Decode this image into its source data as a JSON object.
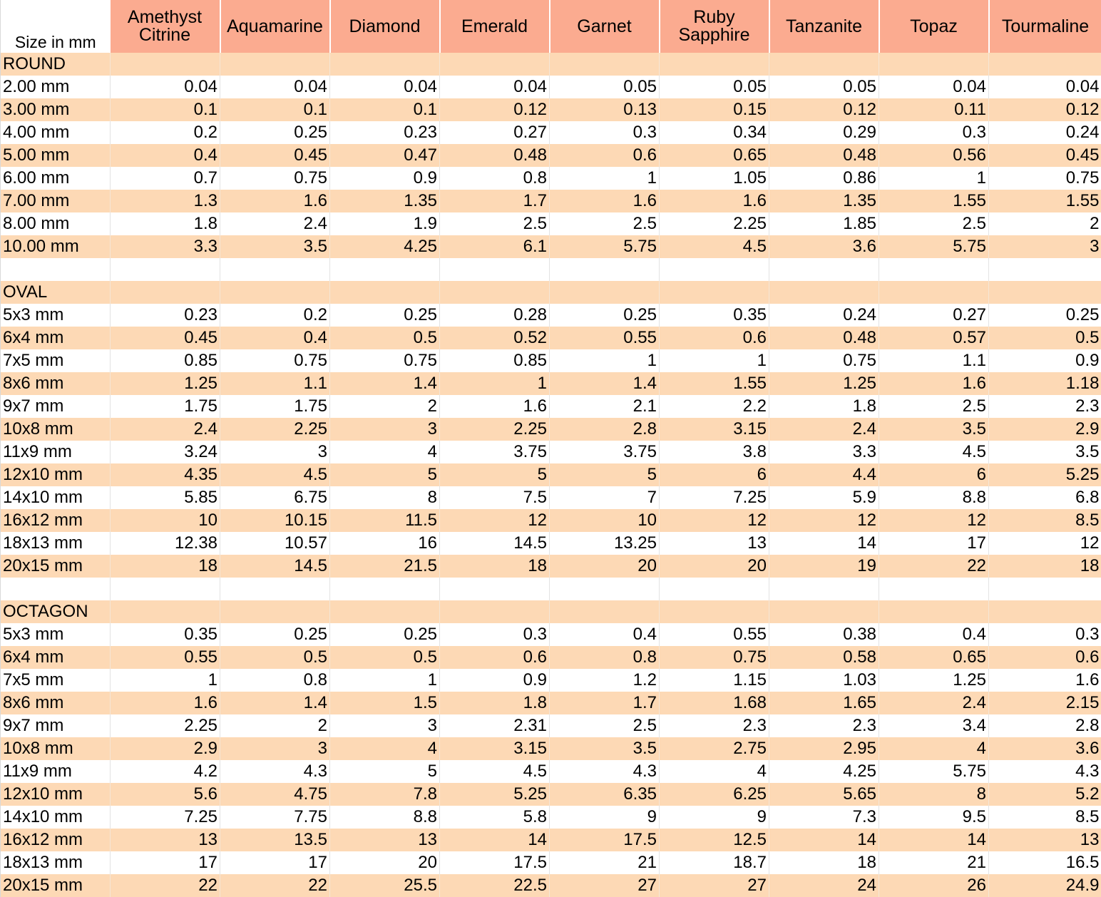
{
  "header": {
    "size_label": "Size in mm",
    "gems": [
      "Amethyst\nCitrine",
      "Aquamarine",
      "Diamond",
      "Emerald",
      "Garnet",
      "Ruby\nSapphire",
      "Tanzanite",
      "Topaz",
      "Tourmaline"
    ]
  },
  "sections": [
    {
      "name": "ROUND",
      "rows": [
        {
          "size": "2.00 mm",
          "values": [
            "0.04",
            "0.04",
            "0.04",
            "0.04",
            "0.05",
            "0.05",
            "0.05",
            "0.04",
            "0.04"
          ]
        },
        {
          "size": "3.00 mm",
          "values": [
            "0.1",
            "0.1",
            "0.1",
            "0.12",
            "0.13",
            "0.15",
            "0.12",
            "0.11",
            "0.12"
          ]
        },
        {
          "size": "4.00 mm",
          "values": [
            "0.2",
            "0.25",
            "0.23",
            "0.27",
            "0.3",
            "0.34",
            "0.29",
            "0.3",
            "0.24"
          ]
        },
        {
          "size": "5.00 mm",
          "values": [
            "0.4",
            "0.45",
            "0.47",
            "0.48",
            "0.6",
            "0.65",
            "0.48",
            "0.56",
            "0.45"
          ]
        },
        {
          "size": "6.00 mm",
          "values": [
            "0.7",
            "0.75",
            "0.9",
            "0.8",
            "1",
            "1.05",
            "0.86",
            "1",
            "0.75"
          ]
        },
        {
          "size": "7.00 mm",
          "values": [
            "1.3",
            "1.6",
            "1.35",
            "1.7",
            "1.6",
            "1.6",
            "1.35",
            "1.55",
            "1.55"
          ]
        },
        {
          "size": "8.00 mm",
          "values": [
            "1.8",
            "2.4",
            "1.9",
            "2.5",
            "2.5",
            "2.25",
            "1.85",
            "2.5",
            "2"
          ]
        },
        {
          "size": "10.00 mm",
          "values": [
            "3.3",
            "3.5",
            "4.25",
            "6.1",
            "5.75",
            "4.5",
            "3.6",
            "5.75",
            "3"
          ]
        }
      ]
    },
    {
      "name": "OVAL",
      "rows": [
        {
          "size": "5x3 mm",
          "values": [
            "0.23",
            "0.2",
            "0.25",
            "0.28",
            "0.25",
            "0.35",
            "0.24",
            "0.27",
            "0.25"
          ]
        },
        {
          "size": "6x4 mm",
          "values": [
            "0.45",
            "0.4",
            "0.5",
            "0.52",
            "0.55",
            "0.6",
            "0.48",
            "0.57",
            "0.5"
          ]
        },
        {
          "size": "7x5 mm",
          "values": [
            "0.85",
            "0.75",
            "0.75",
            "0.85",
            "1",
            "1",
            "0.75",
            "1.1",
            "0.9"
          ]
        },
        {
          "size": "8x6 mm",
          "values": [
            "1.25",
            "1.1",
            "1.4",
            "1",
            "1.4",
            "1.55",
            "1.25",
            "1.6",
            "1.18"
          ]
        },
        {
          "size": "9x7 mm",
          "values": [
            "1.75",
            "1.75",
            "2",
            "1.6",
            "2.1",
            "2.2",
            "1.8",
            "2.5",
            "2.3"
          ]
        },
        {
          "size": "10x8 mm",
          "values": [
            "2.4",
            "2.25",
            "3",
            "2.25",
            "2.8",
            "3.15",
            "2.4",
            "3.5",
            "2.9"
          ]
        },
        {
          "size": "11x9 mm",
          "values": [
            "3.24",
            "3",
            "4",
            "3.75",
            "3.75",
            "3.8",
            "3.3",
            "4.5",
            "3.5"
          ]
        },
        {
          "size": "12x10 mm",
          "values": [
            "4.35",
            "4.5",
            "5",
            "5",
            "5",
            "6",
            "4.4",
            "6",
            "5.25"
          ]
        },
        {
          "size": "14x10 mm",
          "values": [
            "5.85",
            "6.75",
            "8",
            "7.5",
            "7",
            "7.25",
            "5.9",
            "8.8",
            "6.8"
          ]
        },
        {
          "size": "16x12 mm",
          "values": [
            "10",
            "10.15",
            "11.5",
            "12",
            "10",
            "12",
            "12",
            "12",
            "8.5"
          ]
        },
        {
          "size": "18x13 mm",
          "values": [
            "12.38",
            "10.57",
            "16",
            "14.5",
            "13.25",
            "13",
            "14",
            "17",
            "12"
          ]
        },
        {
          "size": "20x15 mm",
          "values": [
            "18",
            "14.5",
            "21.5",
            "18",
            "20",
            "20",
            "19",
            "22",
            "18"
          ]
        }
      ]
    },
    {
      "name": "OCTAGON",
      "rows": [
        {
          "size": "5x3 mm",
          "values": [
            "0.35",
            "0.25",
            "0.25",
            "0.3",
            "0.4",
            "0.55",
            "0.38",
            "0.4",
            "0.3"
          ]
        },
        {
          "size": "6x4 mm",
          "values": [
            "0.55",
            "0.5",
            "0.5",
            "0.6",
            "0.8",
            "0.75",
            "0.58",
            "0.65",
            "0.6"
          ]
        },
        {
          "size": "7x5 mm",
          "values": [
            "1",
            "0.8",
            "1",
            "0.9",
            "1.2",
            "1.15",
            "1.03",
            "1.25",
            "1.6"
          ]
        },
        {
          "size": "8x6 mm",
          "values": [
            "1.6",
            "1.4",
            "1.5",
            "1.8",
            "1.7",
            "1.68",
            "1.65",
            "2.4",
            "2.15"
          ]
        },
        {
          "size": "9x7 mm",
          "values": [
            "2.25",
            "2",
            "3",
            "2.31",
            "2.5",
            "2.3",
            "2.3",
            "3.4",
            "2.8"
          ]
        },
        {
          "size": "10x8 mm",
          "values": [
            "2.9",
            "3",
            "4",
            "3.15",
            "3.5",
            "2.75",
            "2.95",
            "4",
            "3.6"
          ]
        },
        {
          "size": "11x9 mm",
          "values": [
            "4.2",
            "4.3",
            "5",
            "4.5",
            "4.3",
            "4",
            "4.25",
            "5.75",
            "4.3"
          ]
        },
        {
          "size": "12x10 mm",
          "values": [
            "5.6",
            "4.75",
            "7.8",
            "5.25",
            "6.35",
            "6.25",
            "5.65",
            "8",
            "5.2"
          ]
        },
        {
          "size": "14x10 mm",
          "values": [
            "7.25",
            "7.75",
            "8.8",
            "5.8",
            "9",
            "9",
            "7.3",
            "9.5",
            "8.5"
          ]
        },
        {
          "size": "16x12 mm",
          "values": [
            "13",
            "13.5",
            "13",
            "14",
            "17.5",
            "12.5",
            "14",
            "14",
            "13"
          ]
        },
        {
          "size": "18x13 mm",
          "values": [
            "17",
            "17",
            "20",
            "17.5",
            "21",
            "18.7",
            "18",
            "21",
            "16.5"
          ]
        },
        {
          "size": "20x15 mm",
          "values": [
            "22",
            "22",
            "25.5",
            "22.5",
            "27",
            "27",
            "24",
            "26",
            "24.9"
          ]
        }
      ]
    }
  ],
  "colors": {
    "header_bg": "#fbab90",
    "band_bg": "#fdd9b5",
    "plain_bg": "#ffffff"
  }
}
